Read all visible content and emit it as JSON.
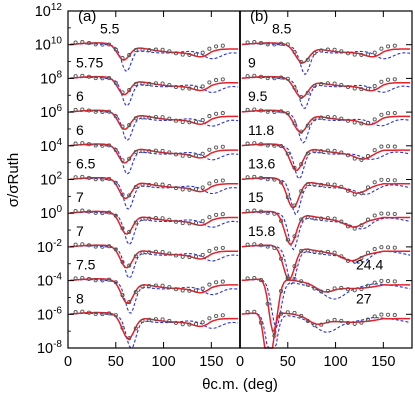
{
  "chart_data": {
    "type": "scatter",
    "xlabel": "θc.m. (deg)",
    "ylabel": "σ/σRuth",
    "y_scale": "log",
    "ylim": [
      1e-08,
      1000000000000.0
    ],
    "yticks": [
      "10⁻⁸",
      "10⁻⁶",
      "10⁻⁴",
      "10⁻²",
      "10⁰",
      "10²",
      "10⁴",
      "10⁶",
      "10⁸",
      "10¹⁰",
      "10¹²"
    ],
    "ytick_bases": [
      "10",
      "10",
      "10",
      "10",
      "10",
      "10",
      "10",
      "10",
      "10",
      "10",
      "10"
    ],
    "ytick_exponents": [
      "-8",
      "-6",
      "-4",
      "-2",
      "0",
      "2",
      "4",
      "6",
      "8",
      "10",
      "12"
    ],
    "xticks": [
      "0",
      "50",
      "100",
      "150"
    ],
    "series_styles": {
      "data": "open circles",
      "solid": "red solid line",
      "dashed": "blue dashed line"
    },
    "colors": {
      "solid": "#e8202a",
      "dashed": "#2a33d6",
      "points": "#555555",
      "axes": "#000000"
    },
    "panels": [
      {
        "label": "(a)",
        "xlim": [
          0,
          180
        ],
        "curves": [
          {
            "energy": "5.5",
            "offset_decade": 10
          },
          {
            "energy": "5.75",
            "offset_decade": 8
          },
          {
            "energy": "6",
            "offset_decade": 6
          },
          {
            "energy": "6",
            "offset_decade": 4
          },
          {
            "energy": "6.5",
            "offset_decade": 2
          },
          {
            "energy": "7",
            "offset_decade": 0
          },
          {
            "energy": "7",
            "offset_decade": -2
          },
          {
            "energy": "7.5",
            "offset_decade": -4
          },
          {
            "energy": "8",
            "offset_decade": -6
          }
        ]
      },
      {
        "label": "(b)",
        "xlim": [
          0,
          180
        ],
        "curves": [
          {
            "energy": "8.5",
            "offset_decade": 10
          },
          {
            "energy": "9",
            "offset_decade": 8
          },
          {
            "energy": "9.5",
            "offset_decade": 6
          },
          {
            "energy": "11.8",
            "offset_decade": 4
          },
          {
            "energy": "13.6",
            "offset_decade": 2
          },
          {
            "energy": "15",
            "offset_decade": 0
          },
          {
            "energy": "15.8",
            "offset_decade": -2
          },
          {
            "energy": "24.4",
            "offset_decade": -4
          },
          {
            "energy": "27",
            "offset_decade": -6
          }
        ]
      }
    ]
  }
}
